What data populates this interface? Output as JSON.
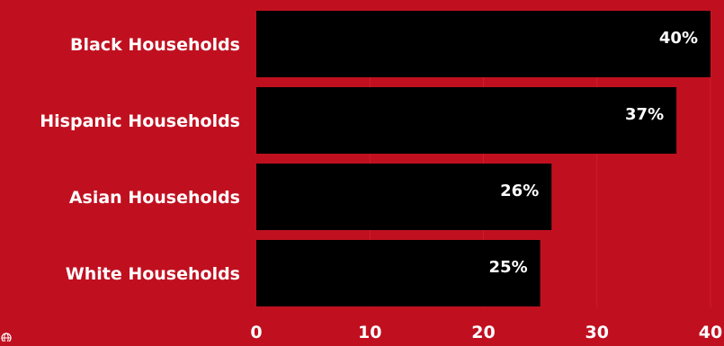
{
  "colors": {
    "background": "#c01020",
    "bar": "#000000",
    "text": "#ffffff",
    "gridline": "#d21a2c"
  },
  "chart_data": {
    "type": "bar",
    "orientation": "horizontal",
    "categories": [
      "Black Households",
      "Hispanic Households",
      "Asian Households",
      "White Households"
    ],
    "values": [
      40,
      37,
      26,
      25
    ],
    "value_labels": [
      "40%",
      "37%",
      "26%",
      "25%"
    ],
    "xlim": [
      0,
      40
    ],
    "xticks": [
      0,
      10,
      20,
      30,
      40
    ],
    "xtick_labels": [
      "0",
      "10",
      "20",
      "30",
      "40"
    ],
    "grid": true,
    "title": "",
    "xlabel": "",
    "ylabel": ""
  },
  "corner_icon": "globe-icon"
}
